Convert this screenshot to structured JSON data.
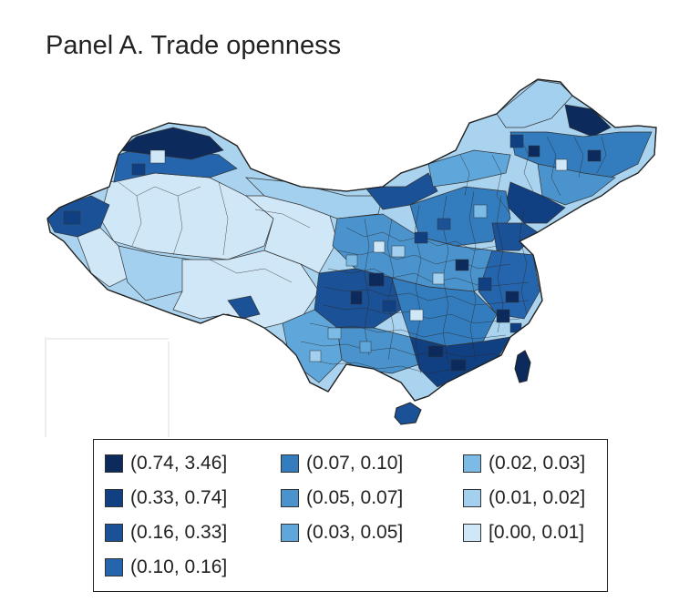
{
  "title": "Panel A. Trade openness",
  "map": {
    "country": "China",
    "variable": "Trade openness",
    "subject": "prefectural trade openness",
    "provinces_colored": true
  },
  "legend": {
    "items": [
      {
        "label": "(0.74, 3.46]",
        "color": "#0c2a5b"
      },
      {
        "label": "(0.33, 0.74]",
        "color": "#103f82"
      },
      {
        "label": "(0.16, 0.33]",
        "color": "#1b5196"
      },
      {
        "label": "(0.10, 0.16]",
        "color": "#2565ad"
      },
      {
        "label": "(0.07, 0.10]",
        "color": "#337cbe"
      },
      {
        "label": "(0.05, 0.07]",
        "color": "#4a93cd"
      },
      {
        "label": "(0.03, 0.05]",
        "color": "#5fa7da"
      },
      {
        "label": "(0.02, 0.03]",
        "color": "#7bbbe6"
      },
      {
        "label": "(0.01, 0.02]",
        "color": "#a3d0ee"
      },
      {
        "label": "[0.00, 0.01]",
        "color": "#cfe7f7"
      }
    ]
  }
}
